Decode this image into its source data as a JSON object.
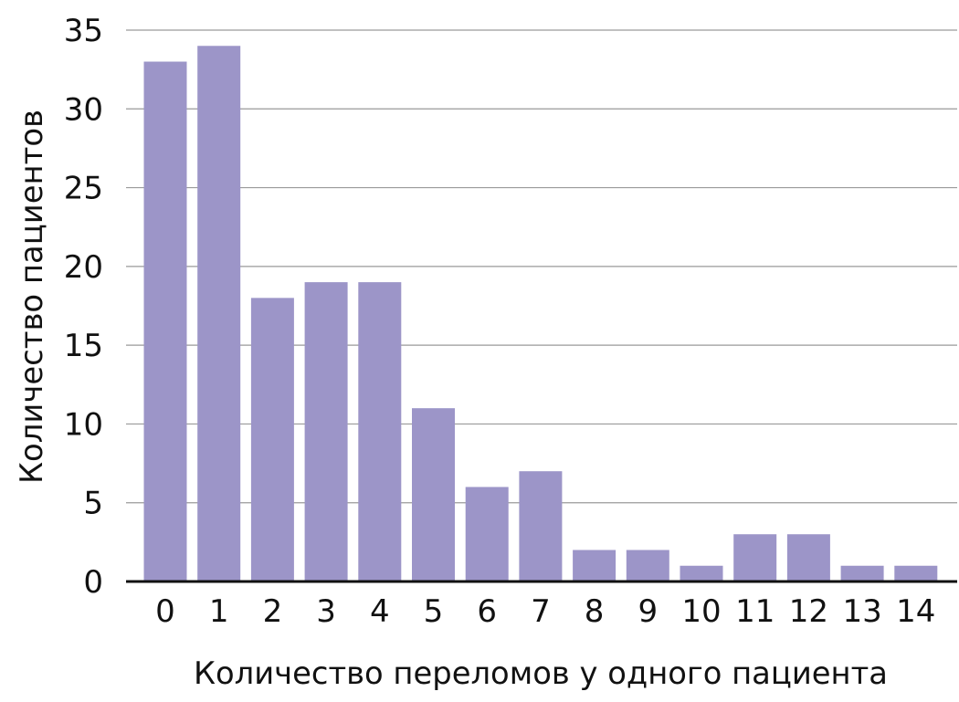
{
  "chart_data": {
    "type": "bar",
    "title": "",
    "xlabel": "Количество переломов у одного пациента",
    "ylabel": "Количество пациентов",
    "categories": [
      "0",
      "1",
      "2",
      "3",
      "4",
      "5",
      "6",
      "7",
      "8",
      "9",
      "10",
      "11",
      "12",
      "13",
      "14"
    ],
    "values": [
      33,
      34,
      18,
      19,
      19,
      11,
      6,
      7,
      2,
      2,
      1,
      3,
      3,
      1,
      1
    ],
    "ylim": [
      0,
      35
    ],
    "yticks": [
      "0",
      "5",
      "10",
      "15",
      "20",
      "25",
      "30",
      "35"
    ],
    "grid": true,
    "legend": "none",
    "colors": {
      "bar": "#9c95c8",
      "grid": "#9a9a9a",
      "axis": "#111111",
      "text": "#111111"
    }
  }
}
